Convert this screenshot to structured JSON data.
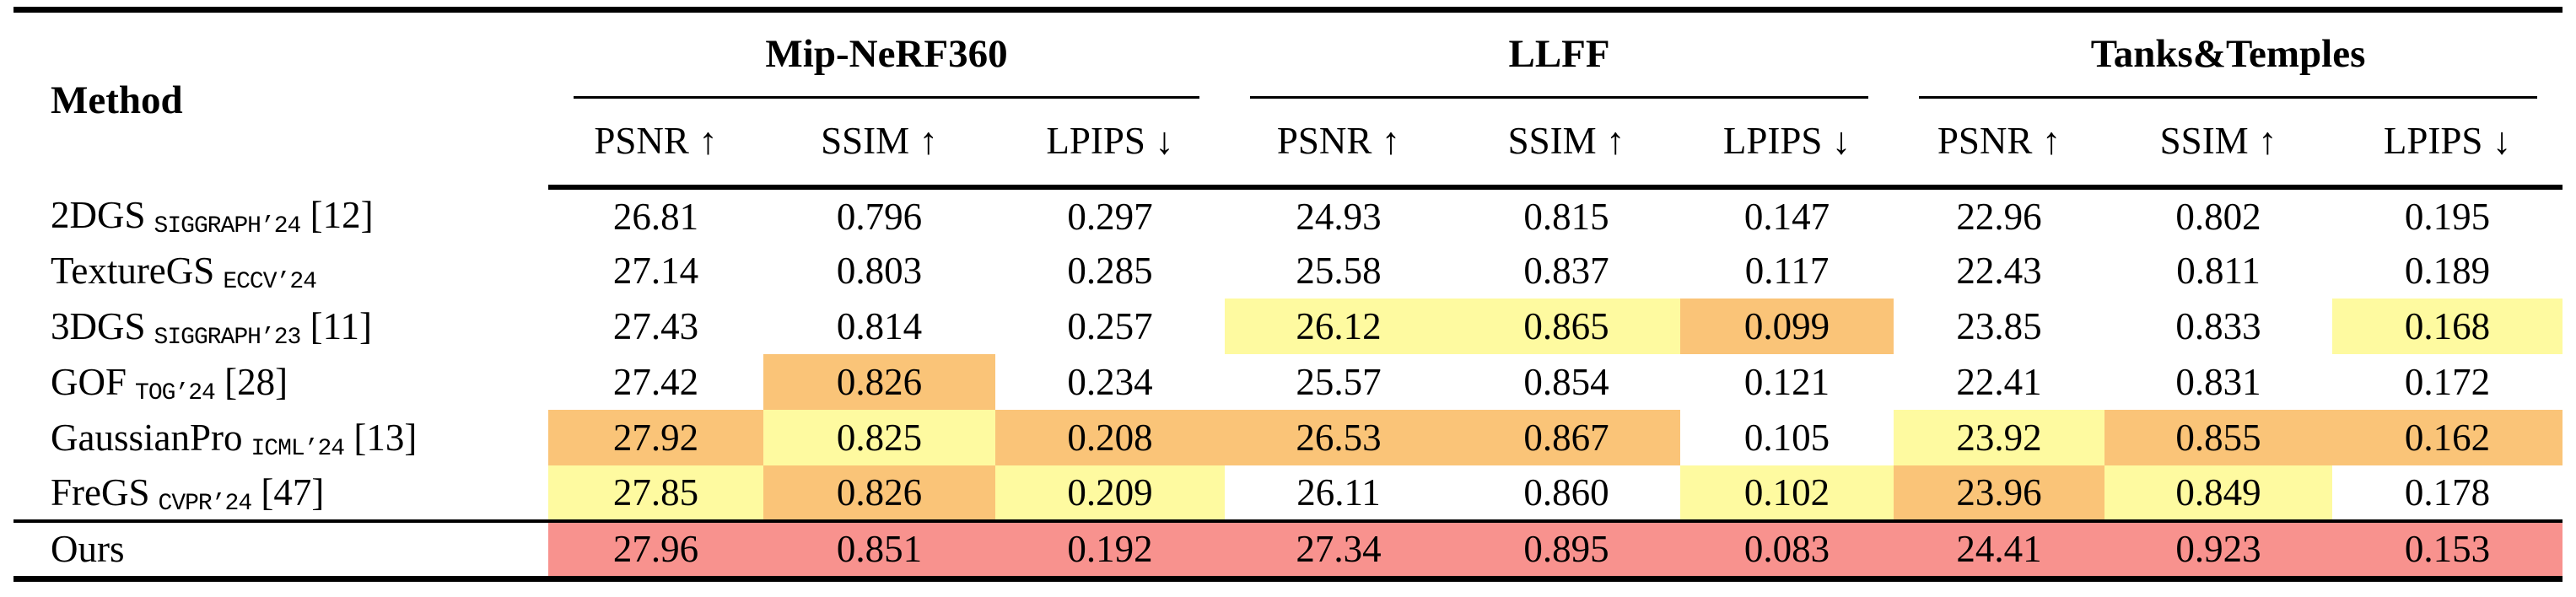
{
  "table": {
    "method_header": "Method",
    "groups": [
      {
        "label": "Mip-NeRF360",
        "metrics": [
          "PSNR ↑",
          "SSIM ↑",
          "LPIPS ↓"
        ]
      },
      {
        "label": "LLFF",
        "metrics": [
          "PSNR ↑",
          "SSIM ↑",
          "LPIPS ↓"
        ]
      },
      {
        "label": "Tanks&Temples",
        "metrics": [
          "PSNR ↑",
          "SSIM ↑",
          "LPIPS ↓"
        ]
      }
    ],
    "highlight_colors": {
      "best": "#F8928E",
      "second": "#FAC478",
      "third": "#FEFAA0"
    },
    "highlight_legend": {
      "r": "best",
      "o": "second",
      "y": "third"
    },
    "rows": [
      {
        "method": "2DGS",
        "venue": "SIGGRAPH’24",
        "ref": "[12]",
        "values": [
          "26.81",
          "0.796",
          "0.297",
          "24.93",
          "0.815",
          "0.147",
          "22.96",
          "0.802",
          "0.195"
        ],
        "highlights": [
          "",
          "",
          "",
          "",
          "",
          "",
          "",
          "",
          ""
        ]
      },
      {
        "method": "TextureGS",
        "venue": "ECCV’24",
        "ref": "",
        "values": [
          "27.14",
          "0.803",
          "0.285",
          "25.58",
          "0.837",
          "0.117",
          "22.43",
          "0.811",
          "0.189"
        ],
        "highlights": [
          "",
          "",
          "",
          "",
          "",
          "",
          "",
          "",
          ""
        ]
      },
      {
        "method": "3DGS",
        "venue": "SIGGRAPH’23",
        "ref": "[11]",
        "values": [
          "27.43",
          "0.814",
          "0.257",
          "26.12",
          "0.865",
          "0.099",
          "23.85",
          "0.833",
          "0.168"
        ],
        "highlights": [
          "",
          "",
          "",
          "y",
          "y",
          "o",
          "",
          "",
          "y"
        ]
      },
      {
        "method": "GOF",
        "venue": "TOG’24",
        "ref": "[28]",
        "values": [
          "27.42",
          "0.826",
          "0.234",
          "25.57",
          "0.854",
          "0.121",
          "22.41",
          "0.831",
          "0.172"
        ],
        "highlights": [
          "",
          "o",
          "",
          "",
          "",
          "",
          "",
          "",
          ""
        ]
      },
      {
        "method": "GaussianPro",
        "venue": "ICML’24",
        "ref": "[13]",
        "values": [
          "27.92",
          "0.825",
          "0.208",
          "26.53",
          "0.867",
          "0.105",
          "23.92",
          "0.855",
          "0.162"
        ],
        "highlights": [
          "o",
          "y",
          "o",
          "o",
          "o",
          "",
          "y",
          "o",
          "o"
        ]
      },
      {
        "method": "FreGS",
        "venue": "CVPR’24",
        "ref": "[47]",
        "values": [
          "27.85",
          "0.826",
          "0.209",
          "26.11",
          "0.860",
          "0.102",
          "23.96",
          "0.849",
          "0.178"
        ],
        "highlights": [
          "y",
          "o",
          "y",
          "",
          "",
          "y",
          "o",
          "y",
          ""
        ]
      },
      {
        "method": "Ours",
        "venue": "",
        "ref": "",
        "is_ours": true,
        "values": [
          "27.96",
          "0.851",
          "0.192",
          "27.34",
          "0.895",
          "0.083",
          "24.41",
          "0.923",
          "0.153"
        ],
        "highlights": [
          "r",
          "r",
          "r",
          "r",
          "r",
          "r",
          "r",
          "r",
          "r"
        ]
      }
    ]
  }
}
